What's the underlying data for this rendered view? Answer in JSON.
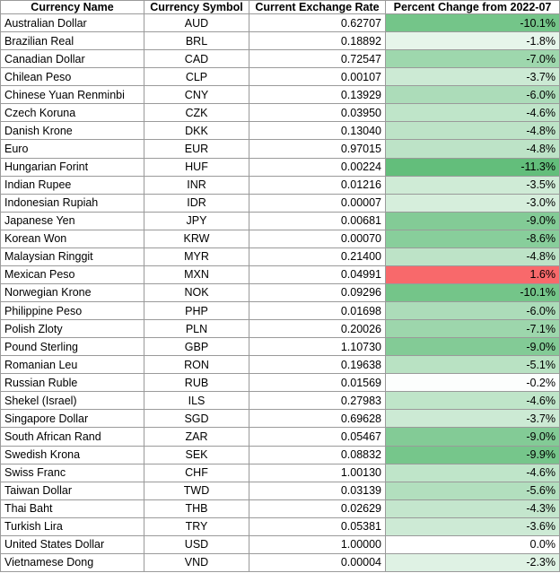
{
  "table": {
    "header": [
      "Currency Name",
      "Currency Symbol",
      "Current Exchange Rate",
      "Percent Change from 2022-07"
    ],
    "rows": [
      [
        "Australian Dollar",
        "AUD",
        "0.62707",
        "-10.1%"
      ],
      [
        "Brazilian Real",
        "BRL",
        "0.18892",
        "-1.8%"
      ],
      [
        "Canadian Dollar",
        "CAD",
        "0.72547",
        "-7.0%"
      ],
      [
        "Chilean Peso",
        "CLP",
        "0.00107",
        "-3.7%"
      ],
      [
        "Chinese Yuan Renminbi",
        "CNY",
        "0.13929",
        "-6.0%"
      ],
      [
        "Czech Koruna",
        "CZK",
        "0.03950",
        "-4.6%"
      ],
      [
        "Danish Krone",
        "DKK",
        "0.13040",
        "-4.8%"
      ],
      [
        "Euro",
        "EUR",
        "0.97015",
        "-4.8%"
      ],
      [
        "Hungarian Forint",
        "HUF",
        "0.00224",
        "-11.3%"
      ],
      [
        "Indian Rupee",
        "INR",
        "0.01216",
        "-3.5%"
      ],
      [
        "Indonesian Rupiah",
        "IDR",
        "0.00007",
        "-3.0%"
      ],
      [
        "Japanese Yen",
        "JPY",
        "0.00681",
        "-9.0%"
      ],
      [
        "Korean Won",
        "KRW",
        "0.00070",
        "-8.6%"
      ],
      [
        "Malaysian Ringgit",
        "MYR",
        "0.21400",
        "-4.8%"
      ],
      [
        "Mexican Peso",
        "MXN",
        "0.04991",
        "1.6%"
      ],
      [
        "Norwegian Krone",
        "NOK",
        "0.09296",
        "-10.1%"
      ],
      [
        "Philippine Peso",
        "PHP",
        "0.01698",
        "-6.0%"
      ],
      [
        "Polish Zloty",
        "PLN",
        "0.20026",
        "-7.1%"
      ],
      [
        "Pound Sterling",
        "GBP",
        "1.10730",
        "-9.0%"
      ],
      [
        "Romanian Leu",
        "RON",
        "0.19638",
        "-5.1%"
      ],
      [
        "Russian Ruble",
        "RUB",
        "0.01569",
        "-0.2%"
      ],
      [
        "Shekel (Israel)",
        "ILS",
        "0.27983",
        "-4.6%"
      ],
      [
        "Singapore Dollar",
        "SGD",
        "0.69628",
        "-3.7%"
      ],
      [
        "South African Rand",
        "ZAR",
        "0.05467",
        "-9.0%"
      ],
      [
        "Swedish Krona",
        "SEK",
        "0.08832",
        "-9.9%"
      ],
      [
        "Swiss Franc",
        "CHF",
        "1.00130",
        "-4.6%"
      ],
      [
        "Taiwan Dollar",
        "TWD",
        "0.03139",
        "-5.6%"
      ],
      [
        "Thai Baht",
        "THB",
        "0.02629",
        "-4.3%"
      ],
      [
        "Turkish Lira",
        "TRY",
        "0.05381",
        "-3.6%"
      ],
      [
        "United States Dollar",
        "USD",
        "1.00000",
        "0.0%"
      ],
      [
        "Vietnamese Dong",
        "VND",
        "0.00004",
        "-2.3%"
      ]
    ]
  }
}
